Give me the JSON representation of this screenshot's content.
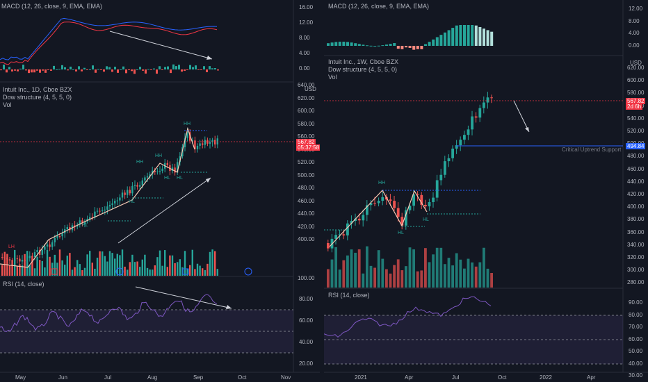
{
  "left": {
    "macd": {
      "title": "MACD (12, 26, close, 9, EMA, EMA)",
      "ticks": [
        "16.00",
        "12.00",
        "8.00",
        "4.00",
        "0.00"
      ]
    },
    "main": {
      "title": "Intuit Inc., 1D, Cboe BZX",
      "study": "Dow structure (4, 5, 5, 0)",
      "vol": "Vol",
      "ticks": [
        "640.00",
        "620.00",
        "600.00",
        "580.00",
        "560.00",
        "540.00",
        "520.00",
        "500.00",
        "480.00",
        "460.00",
        "440.00",
        "420.00",
        "400.00",
        "100.00"
      ],
      "usd": "USD",
      "price": "567.82",
      "countdown": "05:37:58",
      "labels": {
        "hh1": "HH",
        "hh2": "HH",
        "hh3": "HH",
        "hl1": "HL",
        "hl2": "HL",
        "hl3": "HL",
        "hl4": "HL",
        "lh": "LH"
      }
    },
    "rsi": {
      "title": "RSI (14, close)",
      "ticks": [
        "80.00",
        "60.00",
        "40.00",
        "20.00"
      ]
    },
    "xaxis": [
      "May",
      "Jun",
      "Jul",
      "Aug",
      "Sep",
      "Oct",
      "Nov"
    ]
  },
  "right": {
    "macd": {
      "title": "MACD (12, 26, close, 9, EMA, EMA)",
      "ticks": [
        "12.00",
        "8.00",
        "4.00",
        "0.00"
      ]
    },
    "main": {
      "title": "Intuit Inc., 1W, Cboe BZX",
      "study": "Dow structure (4, 5, 5, 0)",
      "vol": "Vol",
      "ticks": [
        "620.00",
        "600.00",
        "580.00",
        "560.00",
        "540.00",
        "520.00",
        "500.00",
        "480.00",
        "460.00",
        "440.00",
        "420.00",
        "400.00",
        "380.00",
        "360.00",
        "340.00",
        "320.00",
        "300.00",
        "280.00"
      ],
      "usd": "USD",
      "price": "567.82",
      "countdown": "2d 6h",
      "support_price": "494.84",
      "support_label": "Critical Uptrend Support",
      "labels": {
        "hh": "HH",
        "hl1": "HL",
        "hl2": "HL"
      }
    },
    "rsi": {
      "title": "RSI (14, close)",
      "ticks": [
        "90.00",
        "80.00",
        "70.00",
        "60.00",
        "50.00",
        "40.00",
        "30.00"
      ]
    },
    "xaxis": [
      "2021",
      "Apr",
      "Jul",
      "Oct",
      "2022",
      "Apr"
    ]
  },
  "colors": {
    "bg": "#131722",
    "up": "#26a69a",
    "down": "#ef5350",
    "macd": "#2962ff",
    "signal": "#f23645",
    "rsi": "#7e57c2",
    "support": "#2962ff"
  }
}
